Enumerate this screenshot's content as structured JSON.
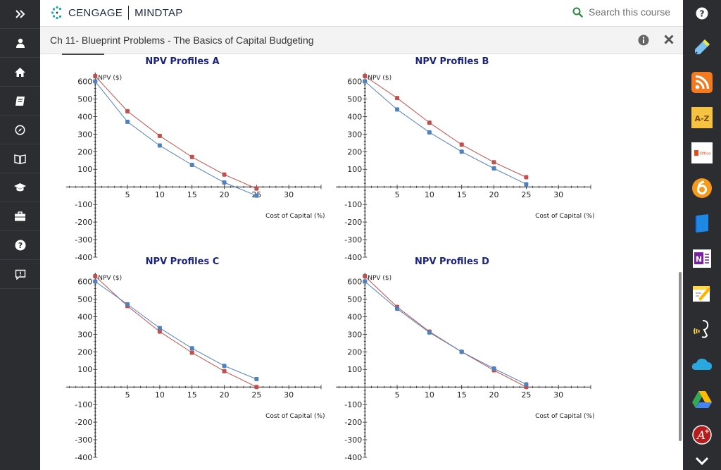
{
  "header": {
    "brand": "CENGAGE",
    "product": "MINDTAP",
    "search_placeholder": "Search this course"
  },
  "title_bar": {
    "title": "Ch 11- Blueprint Problems - The Basics of Capital Budgeting"
  },
  "left_nav": [
    {
      "name": "expand-icon"
    },
    {
      "name": "user-icon"
    },
    {
      "name": "home-icon"
    },
    {
      "name": "notebook-icon"
    },
    {
      "name": "compass-icon"
    },
    {
      "name": "book-icon"
    },
    {
      "name": "graduation-cap-icon"
    },
    {
      "name": "briefcase-icon"
    },
    {
      "name": "help-icon"
    },
    {
      "name": "feedback-icon"
    }
  ],
  "right_tools": [
    {
      "name": "highlighter-icon",
      "color": "#7ec3f0"
    },
    {
      "name": "rss-icon",
      "color": "#f47a20",
      "label": ""
    },
    {
      "name": "glossary-icon",
      "color": "#f5c242",
      "label": "A-Z"
    },
    {
      "name": "office-icon",
      "color": "#ffffff",
      "label": "Office"
    },
    {
      "name": "cengage-app-icon",
      "color": "#f79a1c"
    },
    {
      "name": "ebook-icon",
      "color": "#2196f3"
    },
    {
      "name": "onenote-icon",
      "color": "#ffffff"
    },
    {
      "name": "notes-icon",
      "color": "#ffd740"
    },
    {
      "name": "readspeaker-icon",
      "color": "#ffd54f"
    },
    {
      "name": "onedrive-icon",
      "color": "#29a8e0"
    },
    {
      "name": "google-drive-icon",
      "color": "#34a853"
    },
    {
      "name": "aplia-icon",
      "color": "#c62828"
    },
    {
      "name": "collapse-icon",
      "color": "#ffffff"
    }
  ],
  "colors": {
    "series_red": "#c0504d",
    "series_blue": "#4f81bd",
    "title_blue": "#1a237e"
  },
  "chart_data": [
    {
      "type": "line",
      "title": "NPV Profiles A",
      "xlabel": "Cost of Capital (%)",
      "ylabel": "NPV ($)",
      "xlim": [
        -4.5,
        35
      ],
      "ylim": [
        -400,
        650
      ],
      "xticks": [
        5,
        10,
        15,
        20,
        25,
        30
      ],
      "yticks": [
        600,
        500,
        400,
        300,
        200,
        100,
        -100,
        -200,
        -300,
        -400
      ],
      "x": [
        0,
        5,
        10,
        15,
        20,
        25
      ],
      "series": [
        {
          "values": [
            630,
            430,
            290,
            170,
            70,
            -10
          ],
          "color": "#c0504d"
        },
        {
          "values": [
            600,
            370,
            235,
            125,
            25,
            -50
          ],
          "color": "#4f81bd"
        }
      ]
    },
    {
      "type": "line",
      "title": "NPV Profiles B",
      "xlabel": "Cost of Capital (%)",
      "ylabel": "NPV ($)",
      "xlim": [
        -4.5,
        35
      ],
      "ylim": [
        -400,
        650
      ],
      "xticks": [
        5,
        10,
        15,
        20,
        25,
        30
      ],
      "yticks": [
        600,
        500,
        400,
        300,
        200,
        100,
        -100,
        -200,
        -300,
        -400
      ],
      "x": [
        0,
        5,
        10,
        15,
        20,
        25
      ],
      "series": [
        {
          "values": [
            630,
            505,
            365,
            240,
            140,
            55
          ],
          "color": "#c0504d"
        },
        {
          "values": [
            600,
            440,
            310,
            200,
            105,
            15
          ],
          "color": "#4f81bd"
        }
      ]
    },
    {
      "type": "line",
      "title": "NPV Profiles C",
      "xlabel": "Cost of Capital (%)",
      "ylabel": "NPV ($)",
      "xlim": [
        -4.5,
        35
      ],
      "ylim": [
        -400,
        650
      ],
      "xticks": [
        5,
        10,
        15,
        20,
        25,
        30
      ],
      "yticks": [
        600,
        500,
        400,
        300,
        200,
        100,
        -100,
        -200,
        -300,
        -400
      ],
      "x": [
        0,
        5,
        10,
        15,
        20,
        25
      ],
      "series": [
        {
          "values": [
            630,
            460,
            315,
            195,
            90,
            0
          ],
          "color": "#c0504d"
        },
        {
          "values": [
            600,
            470,
            335,
            220,
            120,
            45
          ],
          "color": "#4f81bd"
        }
      ]
    },
    {
      "type": "line",
      "title": "NPV Profiles D",
      "xlabel": "Cost of Capital (%)",
      "ylabel": "NPV ($)",
      "xlim": [
        -4.5,
        35
      ],
      "ylim": [
        -400,
        650
      ],
      "xticks": [
        5,
        10,
        15,
        20,
        25,
        30
      ],
      "yticks": [
        600,
        500,
        400,
        300,
        200,
        100,
        -100,
        -200,
        -300,
        -400
      ],
      "x": [
        0,
        5,
        10,
        15,
        20,
        25
      ],
      "series": [
        {
          "values": [
            630,
            455,
            315,
            200,
            95,
            0
          ],
          "color": "#c0504d"
        },
        {
          "values": [
            600,
            445,
            310,
            200,
            105,
            15
          ],
          "color": "#4f81bd"
        }
      ]
    }
  ]
}
